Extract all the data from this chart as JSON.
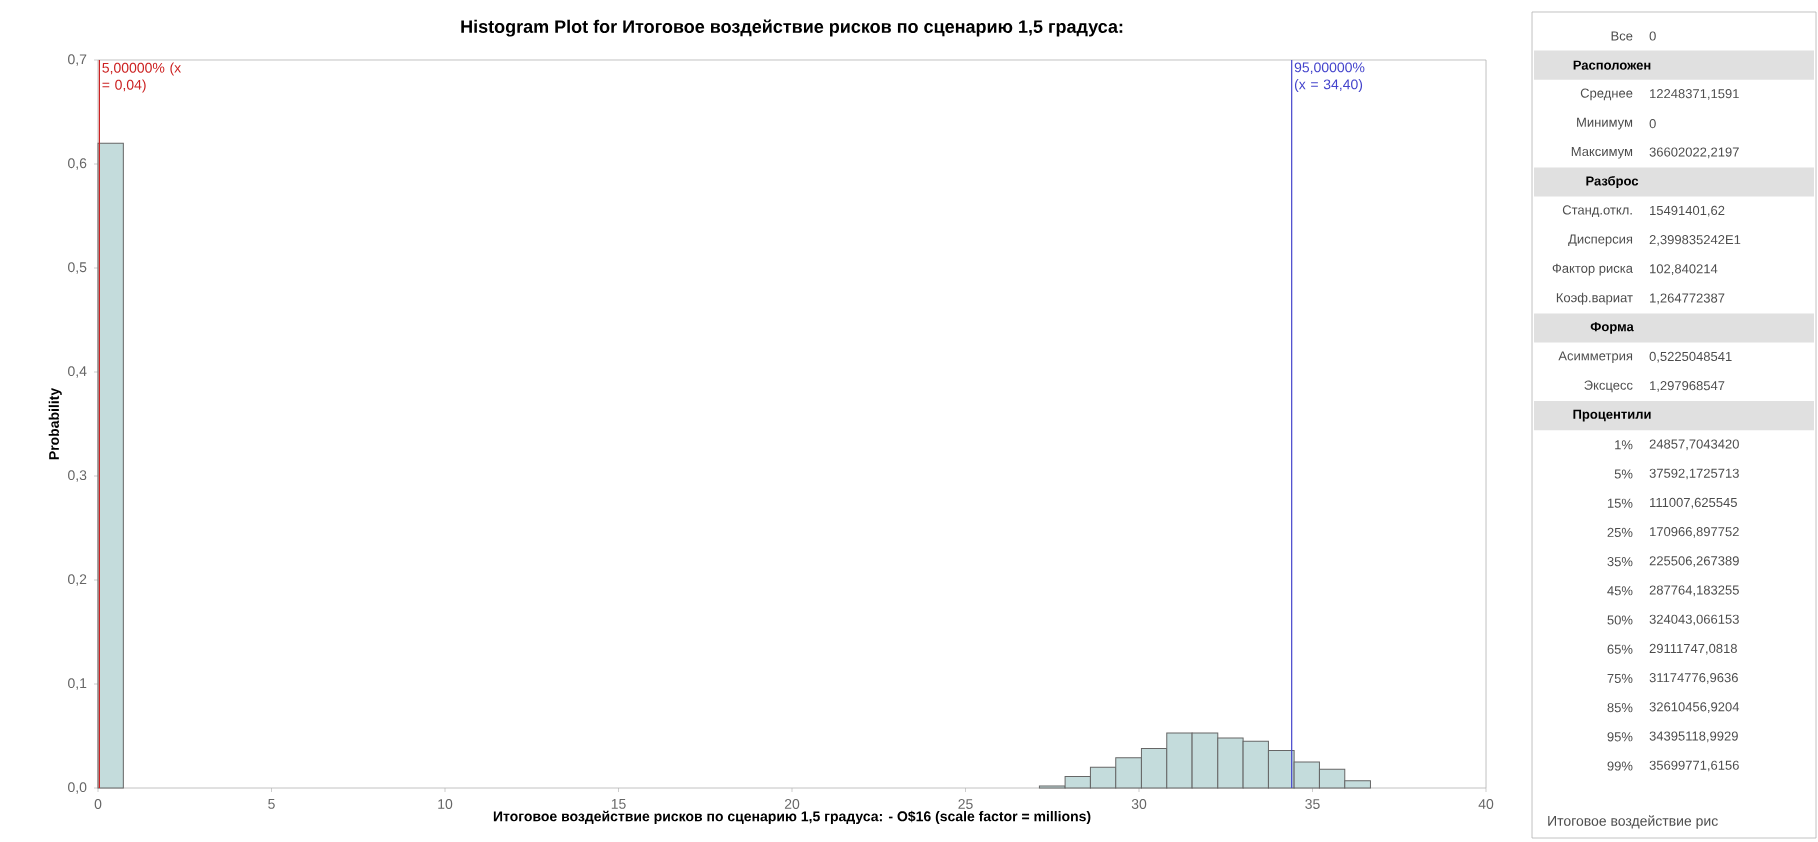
{
  "chart_data": [
    {
      "type": "histogram",
      "title": "Histogram Plot for Итоговое воздействие рисков по сценарию 1,5 градуса:",
      "xlabel": "Итоговое воздействие рисков по сценарию 1,5 градуса: - O$16 (scale factor = millions)",
      "ylabel": "Probability",
      "bins": [
        0,
        0.73,
        1.47,
        2.2,
        2.93,
        3.67,
        4.4,
        5.13,
        5.87,
        6.6,
        7.33,
        8.07,
        8.8,
        9.53,
        10.27,
        11,
        11.73,
        12.47,
        13.2,
        13.93,
        14.67,
        15.4,
        16.13,
        16.87,
        17.6,
        18.33,
        19.07,
        19.8,
        20.53,
        21.27,
        22,
        22.73,
        23.47,
        24.2,
        24.93,
        25.67,
        26.4,
        27.13,
        27.87,
        28.6,
        29.33,
        30.07,
        30.8,
        31.53,
        32.27,
        33,
        33.73,
        34.47,
        35.2,
        35.93,
        36.67
      ],
      "values": [
        0.62,
        0,
        0,
        0,
        0,
        0,
        0,
        0,
        0,
        0,
        0,
        0,
        0,
        0,
        0,
        0,
        0,
        0,
        0,
        0,
        0,
        0,
        0,
        0,
        0,
        0,
        0,
        0,
        0,
        0,
        0,
        0,
        0,
        0,
        0,
        0,
        0,
        0.002,
        0.011,
        0.02,
        0.029,
        0.038,
        0.053,
        0.053,
        0.048,
        0.045,
        0.036,
        0.025,
        0.018,
        0.007
      ],
      "color": "#c4dcdc",
      "xlim": [
        0,
        40
      ],
      "xticks": [
        0,
        5,
        10,
        15,
        20,
        25,
        30,
        35,
        40
      ],
      "ylim": [
        0,
        0.7
      ],
      "yticks": [
        {
          "value": 0,
          "label": "0,0"
        },
        {
          "value": 0.1,
          "label": "0,1"
        },
        {
          "value": 0.2,
          "label": "0,2"
        },
        {
          "value": 0.3,
          "label": "0,3"
        },
        {
          "value": 0.4,
          "label": "0,4"
        },
        {
          "value": 0.5,
          "label": "0,5"
        },
        {
          "value": 0.6,
          "label": "0,6"
        },
        {
          "value": 0.7,
          "label": "0,7"
        }
      ],
      "ref_lines": [
        {
          "axis": "x",
          "value": 0.04,
          "label": "5,00000% (x = 0,04)",
          "color": "#cc2222"
        },
        {
          "axis": "x",
          "value": 34.4,
          "label": "95,00000% (x = 34,40)",
          "color": "#4444cc"
        }
      ]
    },
    {
      "type": "other",
      "categories": [
        "Все",
        "Расположен",
        "Среднее",
        "Минимум",
        "Максимум",
        "Разброс",
        "Станд.откл.",
        "Дисперсия",
        "Фактор риска",
        "Коэф.вариат",
        "Форма",
        "Асимметрия",
        "Эксцесс",
        "Процентили",
        "1%",
        "5%",
        "15%",
        "25%",
        "35%",
        "45%",
        "50%",
        "65%",
        "75%",
        "85%",
        "95%",
        "99%"
      ],
      "value_labels": [
        "0",
        null,
        "12248371,1591",
        "0",
        "36602022,2197",
        null,
        "15491401,62",
        "2,399835242E1",
        "102,840214",
        "1,264772387",
        null,
        "0,5225048541",
        "1,297968547",
        null,
        "24857,7043420",
        "37592,1725713",
        "111007,625545",
        "170966,897752",
        "225506,267389",
        "287764,183255",
        "324043,066153",
        "29111747,0818",
        "31174776,9636",
        "32610456,9204",
        "34395118,9929",
        "35699771,6156"
      ],
      "annotations": [
        "Итоговое воздействие рис"
      ]
    }
  ]
}
